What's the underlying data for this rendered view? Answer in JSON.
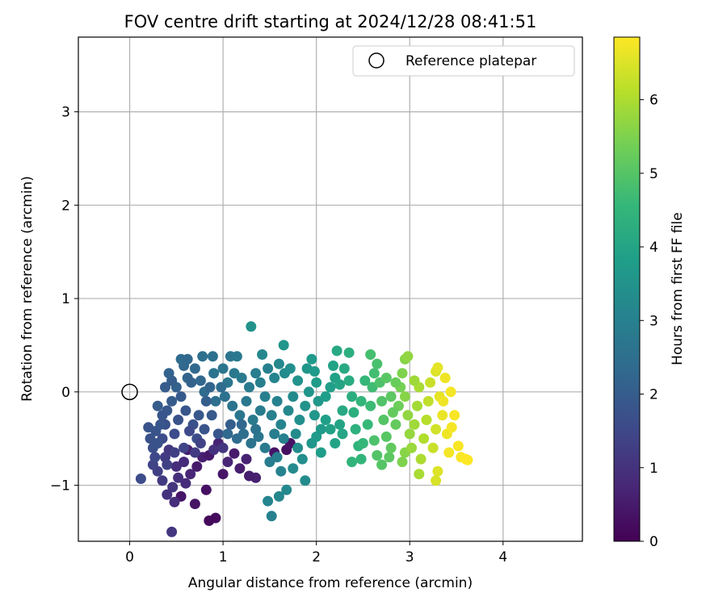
{
  "chart_data": {
    "type": "scatter",
    "title": "FOV centre drift starting at 2024/12/28 08:41:51",
    "xlabel": "Angular distance from reference (arcmin)",
    "ylabel": "Rotation from reference (arcmin)",
    "xlim": [
      -0.55,
      4.85
    ],
    "ylim": [
      -1.6,
      3.8
    ],
    "xticks": [
      0,
      1,
      2,
      3,
      4
    ],
    "xtick_labels": [
      "0",
      "1",
      "2",
      "3",
      "4"
    ],
    "yticks": [
      -1,
      0,
      1,
      2,
      3
    ],
    "ytick_labels": [
      "−1",
      "0",
      "1",
      "2",
      "3"
    ],
    "grid": true,
    "legend": {
      "placement": "top-right",
      "label": "Reference platepar"
    },
    "reference_point": {
      "x": 0,
      "y": 0,
      "label": "Reference platepar"
    },
    "colorbar": {
      "label": "Hours from first FF file",
      "range": [
        0,
        6.85
      ],
      "ticks": [
        0,
        1,
        2,
        3,
        4,
        5,
        6
      ],
      "tick_labels": [
        "0",
        "1",
        "2",
        "3",
        "4",
        "5",
        "6"
      ],
      "colormap": "viridis",
      "colors": [
        "#440154",
        "#482878",
        "#3e4989",
        "#31688e",
        "#26828e",
        "#1f9e89",
        "#35b779",
        "#6ece58",
        "#b5de2b",
        "#fde725"
      ]
    },
    "points": [
      [
        0.62,
        -0.62,
        0.55
      ],
      [
        0.78,
        -0.7,
        0.6
      ],
      [
        0.95,
        -0.55,
        0.65
      ],
      [
        1.05,
        -0.75,
        0.7
      ],
      [
        0.72,
        -0.8,
        0.5
      ],
      [
        0.85,
        -0.68,
        0.45
      ],
      [
        1.18,
        -0.82,
        0.55
      ],
      [
        1.35,
        -0.92,
        0.6
      ],
      [
        1.55,
        -0.65,
        0.4
      ],
      [
        1.68,
        -0.62,
        0.3
      ],
      [
        1.72,
        -0.55,
        0.35
      ],
      [
        0.55,
        -1.12,
        0.4
      ],
      [
        0.7,
        -1.2,
        0.35
      ],
      [
        0.82,
        -1.05,
        0.3
      ],
      [
        0.92,
        -1.35,
        0.2
      ],
      [
        0.85,
        -1.38,
        0.15
      ],
      [
        0.45,
        -1.5,
        1.1
      ],
      [
        0.48,
        -1.18,
        0.9
      ],
      [
        0.4,
        -1.1,
        1.0
      ],
      [
        0.35,
        -0.95,
        1.2
      ],
      [
        0.3,
        -0.85,
        1.3
      ],
      [
        0.25,
        -0.78,
        1.4
      ],
      [
        0.38,
        -0.7,
        1.2
      ],
      [
        0.42,
        -0.62,
        1.1
      ],
      [
        0.5,
        -0.8,
        0.9
      ],
      [
        0.58,
        -0.75,
        0.8
      ],
      [
        0.65,
        -0.88,
        0.75
      ],
      [
        0.6,
        -0.98,
        0.85
      ],
      [
        0.52,
        -0.92,
        0.95
      ],
      [
        0.46,
        -1.02,
        1.05
      ],
      [
        1.0,
        -0.88,
        0.4
      ],
      [
        1.12,
        -0.66,
        0.5
      ],
      [
        1.25,
        -0.72,
        0.65
      ],
      [
        1.28,
        -0.9,
        0.55
      ],
      [
        0.12,
        -0.93,
        1.6
      ],
      [
        0.25,
        -0.6,
        1.7
      ],
      [
        0.35,
        -0.5,
        1.6
      ],
      [
        0.28,
        -0.42,
        1.8
      ],
      [
        0.38,
        -0.35,
        1.7
      ],
      [
        0.48,
        -0.45,
        1.6
      ],
      [
        0.52,
        -0.3,
        1.75
      ],
      [
        0.4,
        -0.2,
        1.9
      ],
      [
        0.45,
        -0.1,
        2.0
      ],
      [
        0.55,
        -0.05,
        1.95
      ],
      [
        0.6,
        -0.2,
        1.85
      ],
      [
        0.68,
        -0.35,
        1.75
      ],
      [
        0.72,
        -0.5,
        1.65
      ],
      [
        0.8,
        -0.4,
        1.8
      ],
      [
        0.88,
        -0.25,
        1.95
      ],
      [
        0.95,
        -0.45,
        1.85
      ],
      [
        0.5,
        0.05,
        2.1
      ],
      [
        0.62,
        0.15,
        2.2
      ],
      [
        0.7,
        0.25,
        2.3
      ],
      [
        0.66,
        0.1,
        2.15
      ],
      [
        0.58,
        0.28,
        2.25
      ],
      [
        0.45,
        0.12,
        2.05
      ],
      [
        0.38,
        0.05,
        2.0
      ],
      [
        0.35,
        -0.25,
        1.85
      ],
      [
        0.3,
        -0.55,
        1.75
      ],
      [
        0.27,
        -0.7,
        1.5
      ],
      [
        0.55,
        0.35,
        2.4
      ],
      [
        0.78,
        0.38,
        2.5
      ],
      [
        0.89,
        0.38,
        2.55
      ],
      [
        1.08,
        0.38,
        2.7
      ],
      [
        1.15,
        0.38,
        2.75
      ],
      [
        1.3,
        0.7,
        3.5
      ],
      [
        1.42,
        0.4,
        3.2
      ],
      [
        1.65,
        0.5,
        3.6
      ],
      [
        0.9,
        0.2,
        2.6
      ],
      [
        1.0,
        0.25,
        2.65
      ],
      [
        1.05,
        0.1,
        2.7
      ],
      [
        1.12,
        0.2,
        2.75
      ],
      [
        1.2,
        0.15,
        2.8
      ],
      [
        1.28,
        0.05,
        2.85
      ],
      [
        1.35,
        0.2,
        2.9
      ],
      [
        1.4,
        0.1,
        2.95
      ],
      [
        1.48,
        0.25,
        3.0
      ],
      [
        1.55,
        0.15,
        3.1
      ],
      [
        1.6,
        0.3,
        3.2
      ],
      [
        1.66,
        0.2,
        3.3
      ],
      [
        1.72,
        0.25,
        3.4
      ],
      [
        1.8,
        0.12,
        3.5
      ],
      [
        1.9,
        0.25,
        3.6
      ],
      [
        1.95,
        0.35,
        3.7
      ],
      [
        1.98,
        0.22,
        3.7
      ],
      [
        0.8,
        0.0,
        2.4
      ],
      [
        0.92,
        -0.1,
        2.5
      ],
      [
        1.02,
        -0.05,
        2.55
      ],
      [
        1.1,
        -0.15,
        2.6
      ],
      [
        1.18,
        -0.25,
        2.7
      ],
      [
        1.25,
        -0.1,
        2.75
      ],
      [
        1.32,
        -0.3,
        2.8
      ],
      [
        1.4,
        -0.2,
        2.85
      ],
      [
        1.45,
        -0.05,
        2.95
      ],
      [
        1.52,
        -0.25,
        3.0
      ],
      [
        1.58,
        -0.1,
        3.05
      ],
      [
        1.62,
        -0.35,
        3.1
      ],
      [
        1.7,
        -0.2,
        3.2
      ],
      [
        1.75,
        -0.05,
        3.3
      ],
      [
        1.82,
        -0.3,
        3.4
      ],
      [
        1.88,
        -0.15,
        3.5
      ],
      [
        1.92,
        0.0,
        3.55
      ],
      [
        1.98,
        -0.25,
        3.6
      ],
      [
        2.02,
        -0.1,
        3.65
      ],
      [
        2.05,
        -0.4,
        3.7
      ],
      [
        1.05,
        -0.45,
        2.3
      ],
      [
        1.15,
        -0.5,
        2.4
      ],
      [
        1.22,
        -0.45,
        2.5
      ],
      [
        1.3,
        -0.55,
        2.6
      ],
      [
        1.38,
        -0.48,
        2.7
      ],
      [
        1.45,
        -0.6,
        2.8
      ],
      [
        1.5,
        -0.75,
        2.9
      ],
      [
        1.58,
        -0.7,
        3.0
      ],
      [
        1.62,
        -0.85,
        3.05
      ],
      [
        1.68,
        -1.05,
        3.2
      ],
      [
        1.6,
        -1.12,
        3.15
      ],
      [
        1.48,
        -1.17,
        3.1
      ],
      [
        1.52,
        -1.33,
        3.0
      ],
      [
        1.75,
        -0.82,
        3.25
      ],
      [
        1.8,
        -0.6,
        3.35
      ],
      [
        1.85,
        -0.72,
        3.4
      ],
      [
        1.88,
        -0.95,
        3.3
      ],
      [
        1.95,
        -0.55,
        3.6
      ],
      [
        2.0,
        -0.48,
        3.7
      ],
      [
        2.05,
        -0.65,
        3.8
      ],
      [
        2.1,
        -0.3,
        3.85
      ],
      [
        2.15,
        -0.4,
        3.9
      ],
      [
        2.2,
        -0.55,
        3.95
      ],
      [
        2.25,
        -0.35,
        4.0
      ],
      [
        2.28,
        -0.45,
        4.05
      ],
      [
        2.1,
        -0.05,
        3.8
      ],
      [
        2.15,
        0.05,
        3.85
      ],
      [
        2.2,
        0.15,
        3.9
      ],
      [
        2.18,
        0.28,
        3.95
      ],
      [
        2.22,
        0.44,
        4.1
      ],
      [
        2.35,
        0.42,
        4.3
      ],
      [
        2.3,
        0.25,
        4.15
      ],
      [
        2.35,
        0.12,
        4.2
      ],
      [
        2.38,
        -0.05,
        4.25
      ],
      [
        2.4,
        -0.22,
        4.3
      ],
      [
        2.42,
        -0.4,
        4.35
      ],
      [
        2.45,
        -0.58,
        4.4
      ],
      [
        2.38,
        -0.75,
        4.45
      ],
      [
        2.48,
        -0.72,
        4.5
      ],
      [
        2.5,
        -0.55,
        4.55
      ],
      [
        2.55,
        -0.35,
        4.6
      ],
      [
        2.58,
        -0.15,
        4.65
      ],
      [
        2.6,
        0.05,
        4.7
      ],
      [
        2.62,
        0.2,
        4.75
      ],
      [
        2.58,
        0.4,
        4.8
      ],
      [
        2.65,
        0.3,
        4.85
      ],
      [
        2.68,
        0.1,
        4.9
      ],
      [
        2.7,
        -0.1,
        4.95
      ],
      [
        2.72,
        -0.3,
        5.0
      ],
      [
        2.75,
        -0.48,
        5.05
      ],
      [
        2.78,
        -0.7,
        5.1
      ],
      [
        2.8,
        -0.6,
        5.15
      ],
      [
        2.62,
        -0.52,
        4.9
      ],
      [
        2.65,
        -0.68,
        4.95
      ],
      [
        2.7,
        -0.78,
        5.0
      ],
      [
        2.85,
        -0.35,
        5.2
      ],
      [
        2.88,
        -0.15,
        5.3
      ],
      [
        2.9,
        0.05,
        5.4
      ],
      [
        2.92,
        0.2,
        5.5
      ],
      [
        2.95,
        0.35,
        5.6
      ],
      [
        2.98,
        0.38,
        5.7
      ],
      [
        2.95,
        -0.05,
        5.6
      ],
      [
        2.98,
        -0.25,
        5.7
      ],
      [
        3.0,
        -0.45,
        5.75
      ],
      [
        2.95,
        -0.65,
        5.6
      ],
      [
        2.92,
        -0.75,
        5.5
      ],
      [
        3.02,
        -0.6,
        5.8
      ],
      [
        3.05,
        -0.35,
        5.85
      ],
      [
        3.08,
        -0.15,
        5.9
      ],
      [
        3.1,
        0.05,
        5.95
      ],
      [
        3.12,
        -0.72,
        6.0
      ],
      [
        3.1,
        -0.88,
        5.95
      ],
      [
        3.15,
        -0.5,
        6.05
      ],
      [
        3.18,
        -0.3,
        6.1
      ],
      [
        3.2,
        -0.1,
        6.2
      ],
      [
        3.22,
        0.1,
        6.3
      ],
      [
        3.25,
        -0.6,
        6.3
      ],
      [
        3.28,
        -0.4,
        6.4
      ],
      [
        3.28,
        0.22,
        6.5
      ],
      [
        3.3,
        0.26,
        6.6
      ],
      [
        3.3,
        -0.85,
        6.5
      ],
      [
        3.28,
        -0.95,
        6.45
      ],
      [
        3.32,
        -0.05,
        6.6
      ],
      [
        3.35,
        -0.25,
        6.65
      ],
      [
        3.38,
        0.15,
        6.7
      ],
      [
        3.4,
        -0.45,
        6.7
      ],
      [
        3.42,
        -0.65,
        6.75
      ],
      [
        3.45,
        -0.38,
        6.75
      ],
      [
        3.48,
        -0.25,
        6.8
      ],
      [
        3.52,
        -0.58,
        6.8
      ],
      [
        3.55,
        -0.7,
        6.8
      ],
      [
        3.6,
        -0.72,
        6.85
      ],
      [
        3.62,
        -0.73,
        6.85
      ],
      [
        3.36,
        -0.1,
        6.7
      ],
      [
        3.44,
        0.0,
        6.75
      ],
      [
        2.0,
        0.1,
        3.75
      ],
      [
        2.25,
        0.08,
        4.0
      ],
      [
        2.28,
        -0.2,
        4.1
      ],
      [
        2.52,
        0.12,
        4.55
      ],
      [
        2.48,
        -0.1,
        4.5
      ],
      [
        2.75,
        0.15,
        5.05
      ],
      [
        2.8,
        -0.05,
        5.1
      ],
      [
        2.82,
        -0.22,
        5.2
      ],
      [
        2.85,
        0.1,
        5.25
      ],
      [
        3.05,
        0.12,
        5.85
      ],
      [
        0.58,
        -0.6,
        1.4
      ],
      [
        0.64,
        -0.42,
        1.55
      ],
      [
        0.74,
        -0.25,
        1.9
      ],
      [
        0.82,
        -0.1,
        2.05
      ],
      [
        0.86,
        0.05,
        2.2
      ],
      [
        0.76,
        0.12,
        2.25
      ],
      [
        0.98,
        0.05,
        2.4
      ],
      [
        0.4,
        -0.78,
        1.35
      ],
      [
        0.33,
        -0.35,
        1.85
      ],
      [
        0.48,
        -0.65,
        1.3
      ],
      [
        0.7,
        -0.65,
        1.2
      ],
      [
        0.76,
        -0.55,
        1.35
      ],
      [
        0.9,
        -0.62,
        1.0
      ],
      [
        1.0,
        -0.6,
        1.1
      ],
      [
        1.08,
        -0.35,
        2.05
      ],
      [
        1.2,
        -0.35,
        2.25
      ],
      [
        1.35,
        -0.4,
        2.6
      ],
      [
        1.55,
        -0.45,
        2.9
      ],
      [
        1.65,
        -0.5,
        3.0
      ],
      [
        1.78,
        -0.45,
        3.3
      ],
      [
        0.3,
        -0.15,
        2.0
      ],
      [
        0.22,
        -0.5,
        1.75
      ],
      [
        0.2,
        -0.38,
        1.8
      ],
      [
        0.42,
        0.2,
        2.15
      ],
      [
        0.62,
        0.35,
        2.3
      ]
    ]
  }
}
